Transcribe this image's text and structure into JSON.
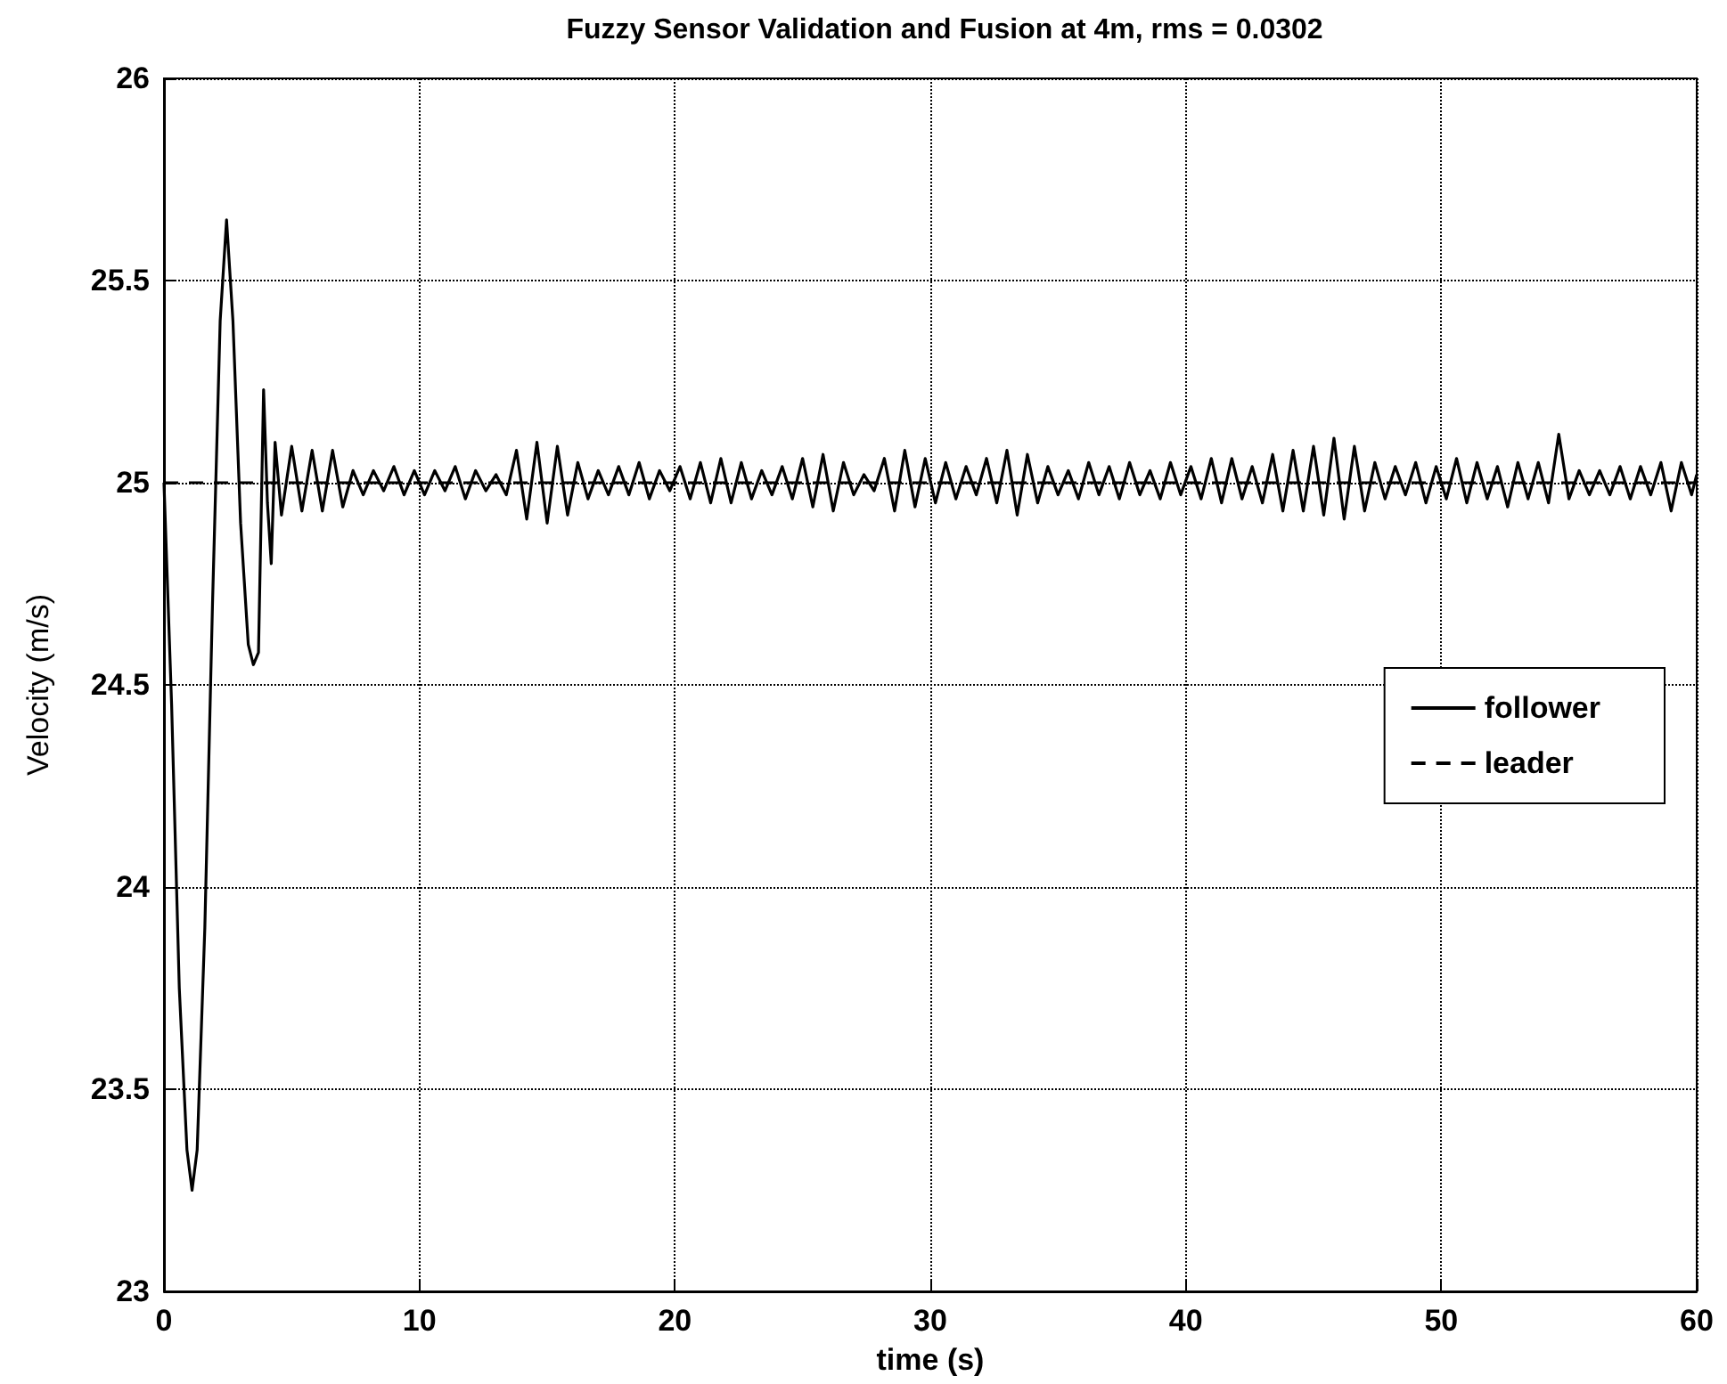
{
  "chart_data": {
    "type": "line",
    "title": "Fuzzy Sensor Validation and Fusion at 4m, rms = 0.0302",
    "xlabel": "time (s)",
    "ylabel": "Velocity (m/s)",
    "xlim": [
      0,
      60
    ],
    "xticks": [
      0,
      10,
      20,
      30,
      40,
      50,
      60
    ],
    "ylim": [
      23,
      26
    ],
    "yticks": [
      23,
      23.5,
      24,
      24.5,
      25,
      25.5,
      26
    ],
    "grid": true,
    "legend": "right",
    "marker": "none",
    "series": [
      {
        "name": "follower",
        "color": "#000000",
        "line_style": "solid",
        "x": [
          0,
          0.3,
          0.6,
          0.9,
          1.1,
          1.3,
          1.6,
          1.9,
          2.2,
          2.45,
          2.7,
          3.0,
          3.3,
          3.5,
          3.7,
          3.9,
          4.05,
          4.2,
          4.35,
          4.6,
          5.0,
          5.4,
          5.8,
          6.2,
          6.6,
          7.0,
          7.4,
          7.8,
          8.2,
          8.6,
          9.0,
          9.4,
          9.8,
          10.2,
          10.6,
          11.0,
          11.4,
          11.8,
          12.2,
          12.6,
          13.0,
          13.4,
          13.8,
          14.2,
          14.6,
          15.0,
          15.4,
          15.8,
          16.2,
          16.6,
          17.0,
          17.4,
          17.8,
          18.2,
          18.6,
          19.0,
          19.4,
          19.8,
          20.2,
          20.6,
          21.0,
          21.4,
          21.8,
          22.2,
          22.6,
          23.0,
          23.4,
          23.8,
          24.2,
          24.6,
          25.0,
          25.4,
          25.8,
          26.2,
          26.6,
          27.0,
          27.4,
          27.8,
          28.2,
          28.6,
          29.0,
          29.4,
          29.8,
          30.2,
          30.6,
          31.0,
          31.4,
          31.8,
          32.2,
          32.6,
          33.0,
          33.4,
          33.8,
          34.2,
          34.6,
          35.0,
          35.4,
          35.8,
          36.2,
          36.6,
          37.0,
          37.4,
          37.8,
          38.2,
          38.6,
          39.0,
          39.4,
          39.8,
          40.2,
          40.6,
          41.0,
          41.4,
          41.8,
          42.2,
          42.6,
          43.0,
          43.4,
          43.8,
          44.2,
          44.6,
          45.0,
          45.4,
          45.8,
          46.2,
          46.6,
          47.0,
          47.4,
          47.8,
          48.2,
          48.6,
          49.0,
          49.4,
          49.8,
          50.2,
          50.6,
          51.0,
          51.4,
          51.8,
          52.2,
          52.6,
          53.0,
          53.4,
          53.8,
          54.2,
          54.6,
          55.0,
          55.4,
          55.8,
          56.2,
          56.6,
          57.0,
          57.4,
          57.8,
          58.2,
          58.6,
          59.0,
          59.4,
          59.8,
          60
        ],
        "values": [
          25,
          24.45,
          23.75,
          23.35,
          23.25,
          23.35,
          23.9,
          24.7,
          25.4,
          25.65,
          25.4,
          24.9,
          24.6,
          24.55,
          24.58,
          25.23,
          24.95,
          24.8,
          25.1,
          24.92,
          25.09,
          24.93,
          25.08,
          24.93,
          25.08,
          24.94,
          25.03,
          24.97,
          25.03,
          24.98,
          25.04,
          24.97,
          25.03,
          24.97,
          25.03,
          24.98,
          25.04,
          24.96,
          25.03,
          24.98,
          25.02,
          24.97,
          25.08,
          24.91,
          25.1,
          24.9,
          25.09,
          24.92,
          25.05,
          24.96,
          25.03,
          24.97,
          25.04,
          24.97,
          25.05,
          24.96,
          25.03,
          24.98,
          25.04,
          24.96,
          25.05,
          24.95,
          25.06,
          24.95,
          25.05,
          24.96,
          25.03,
          24.97,
          25.04,
          24.96,
          25.06,
          24.94,
          25.07,
          24.93,
          25.05,
          24.97,
          25.02,
          24.98,
          25.06,
          24.93,
          25.08,
          24.94,
          25.06,
          24.95,
          25.05,
          24.96,
          25.04,
          24.97,
          25.06,
          24.95,
          25.08,
          24.92,
          25.07,
          24.95,
          25.04,
          24.97,
          25.03,
          24.96,
          25.05,
          24.97,
          25.04,
          24.96,
          25.05,
          24.97,
          25.03,
          24.96,
          25.05,
          24.97,
          25.04,
          24.96,
          25.06,
          24.95,
          25.06,
          24.96,
          25.04,
          24.95,
          25.07,
          24.93,
          25.08,
          24.93,
          25.09,
          24.92,
          25.11,
          24.91,
          25.09,
          24.93,
          25.05,
          24.96,
          25.04,
          24.97,
          25.05,
          24.95,
          25.04,
          24.96,
          25.06,
          24.95,
          25.05,
          24.96,
          25.04,
          24.94,
          25.05,
          24.96,
          25.05,
          24.95,
          25.12,
          24.96,
          25.03,
          24.97,
          25.03,
          24.97,
          25.04,
          24.96,
          25.04,
          24.97,
          25.05,
          24.93,
          25.05,
          24.97,
          25.02
        ]
      },
      {
        "name": "leader",
        "color": "#000000",
        "line_style": "dashed",
        "x": [
          0,
          60
        ],
        "values": [
          25,
          25
        ]
      }
    ]
  }
}
